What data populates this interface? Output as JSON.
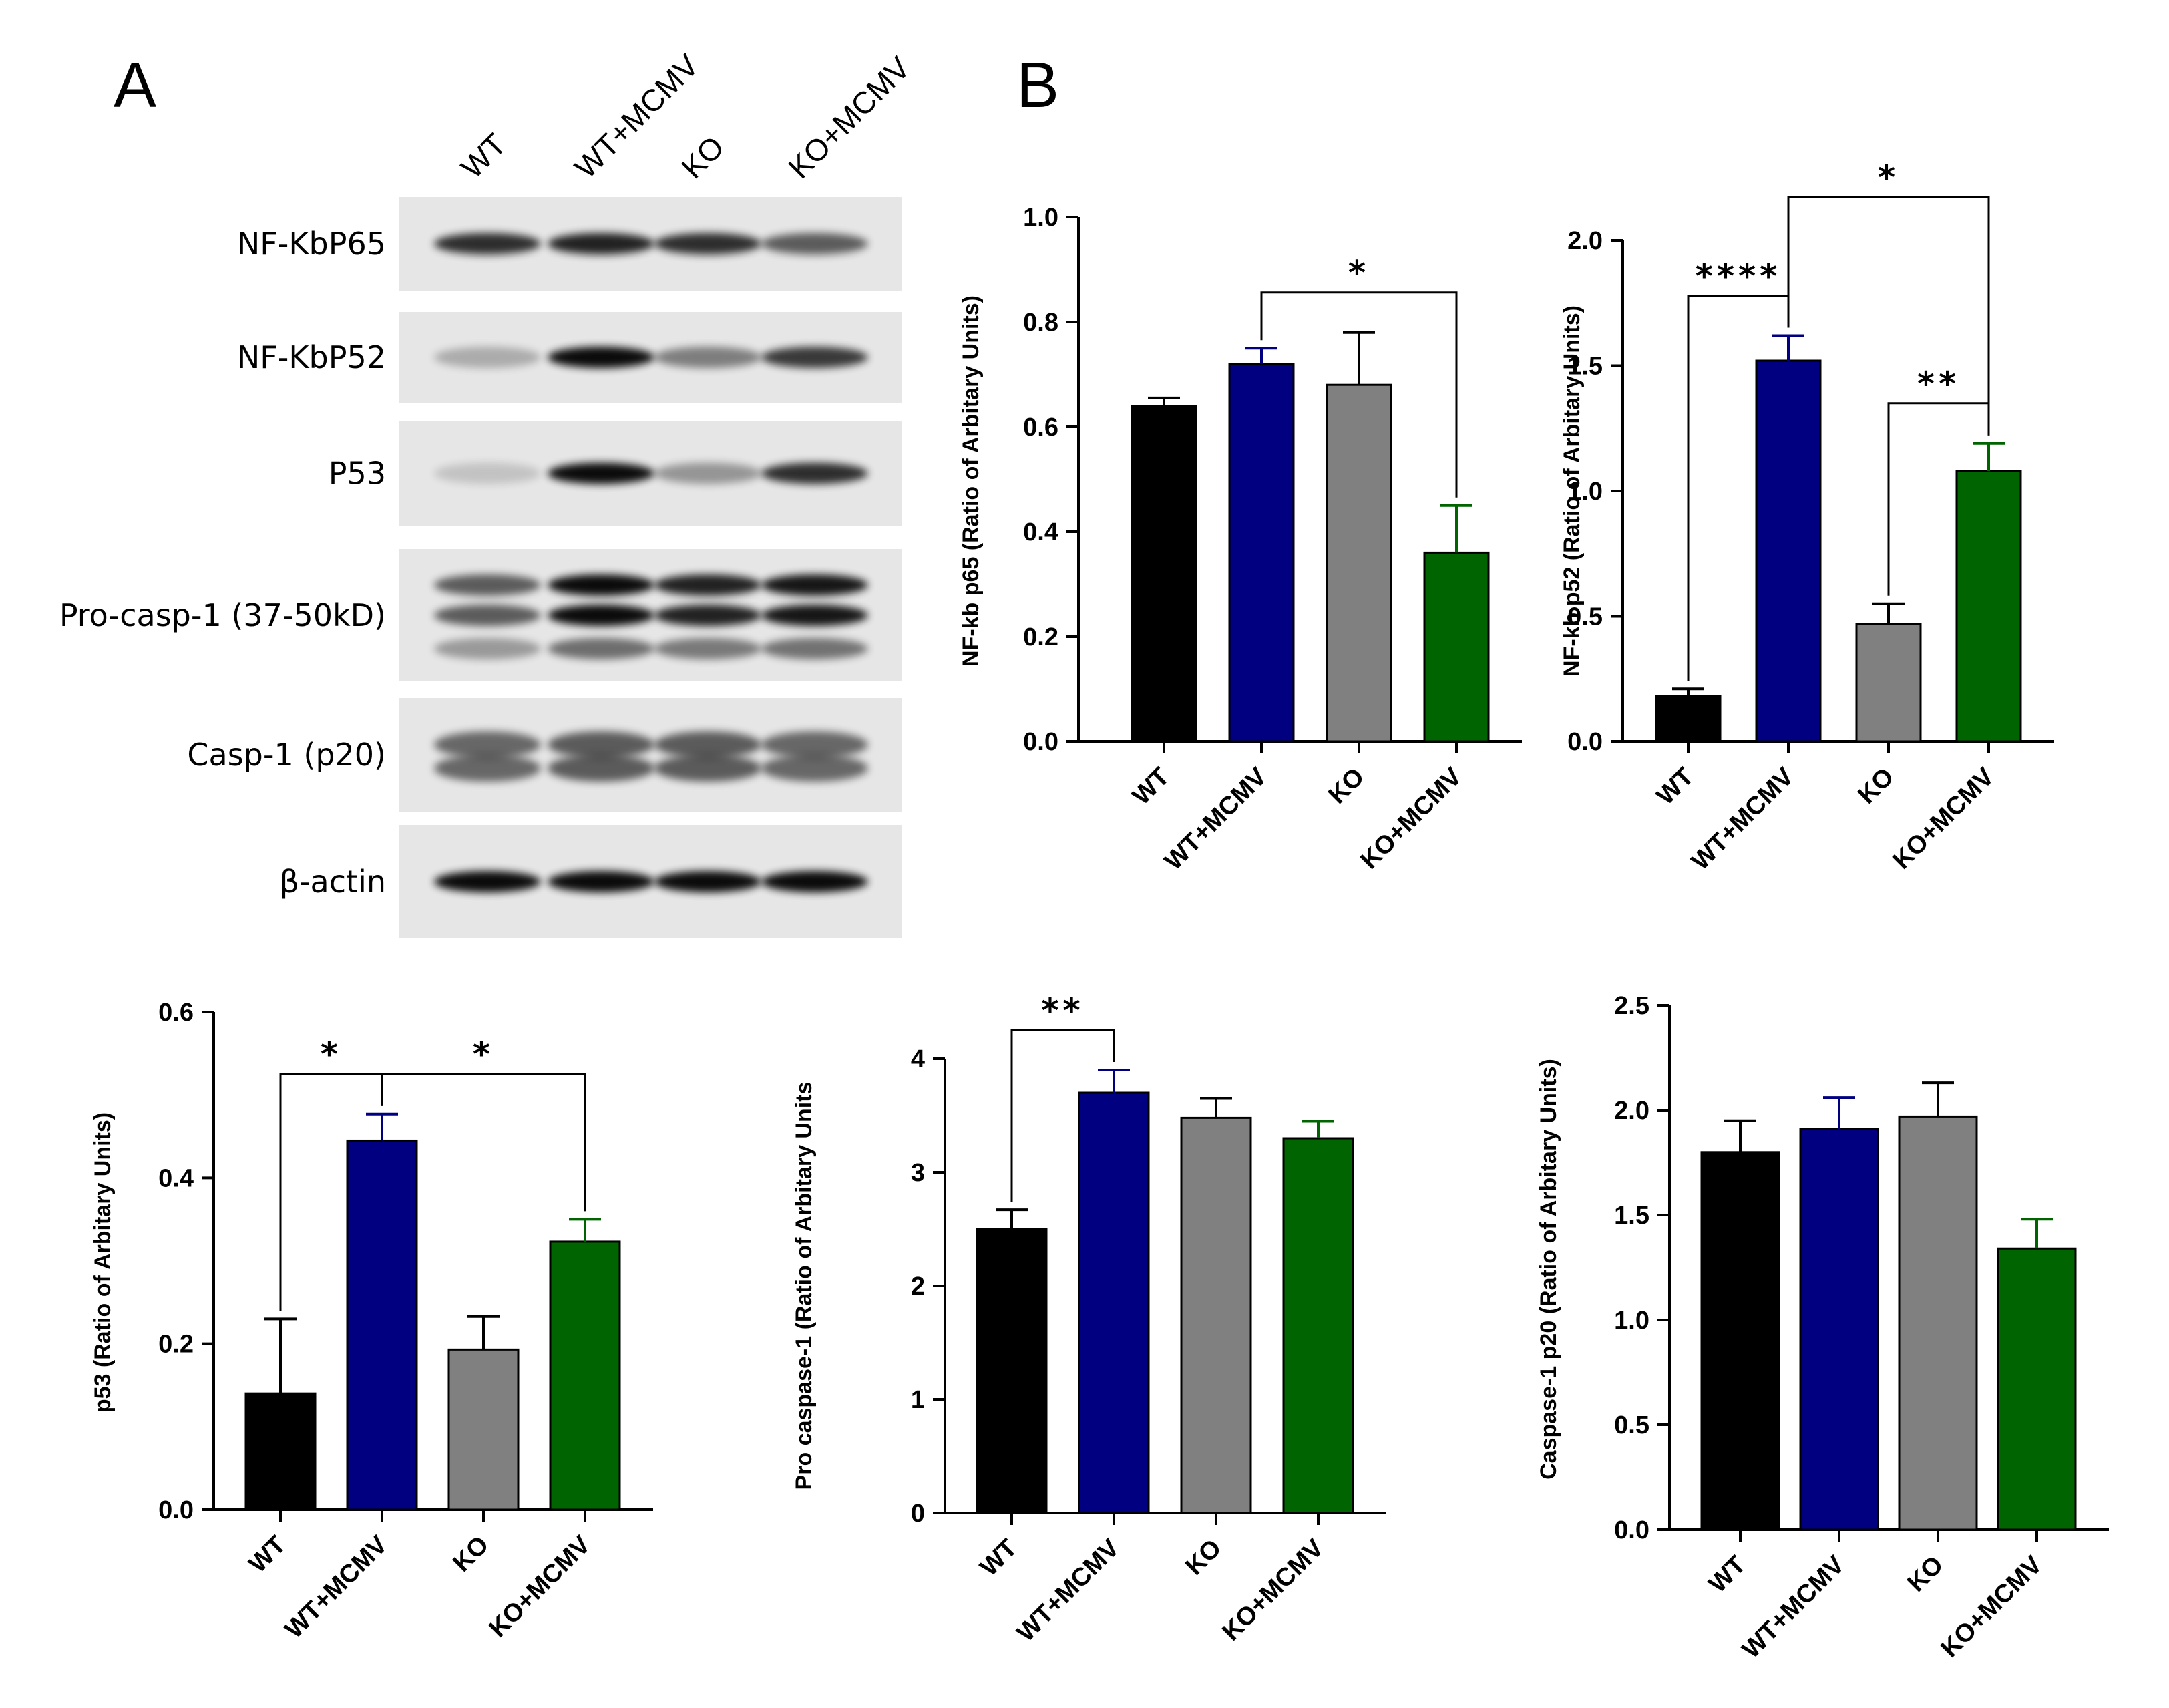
{
  "panel_labels": {
    "a": "A",
    "b": "B"
  },
  "blot": {
    "lanes": [
      "WT",
      "WT+MCMV",
      "KO",
      "KO+MCMV"
    ],
    "rows": [
      {
        "label": "NF-KbP65",
        "bands": [
          0.8,
          0.85,
          0.8,
          0.6
        ]
      },
      {
        "label": "NF-KbP52",
        "bands": [
          0.25,
          0.95,
          0.45,
          0.75
        ]
      },
      {
        "label": "P53",
        "bands": [
          0.15,
          0.95,
          0.35,
          0.8
        ]
      },
      {
        "label": "Pro-casp-1 (37-50kD)",
        "bands": [
          0.6,
          0.95,
          0.85,
          0.9
        ]
      },
      {
        "label": "Casp-1 (p20)",
        "bands": [
          0.55,
          0.6,
          0.6,
          0.55
        ]
      },
      {
        "label": "β-actin",
        "bands": [
          0.95,
          0.95,
          0.95,
          0.95
        ]
      }
    ]
  },
  "colors": {
    "WT": "#000000",
    "WT+MCMV": "#000080",
    "KO": "#808080",
    "KO+MCMV": "#006400"
  },
  "chart_data": [
    {
      "type": "bar",
      "ylabel": "NF-kb p65 (Ratio of Arbitary Units)",
      "categories": [
        "WT",
        "WT+MCMV",
        "KO",
        "KO+MCMV"
      ],
      "values": [
        0.64,
        0.72,
        0.68,
        0.36
      ],
      "errors": [
        0.015,
        0.03,
        0.1,
        0.09
      ],
      "ylim": [
        0,
        1.0
      ],
      "yticks": [
        "0.0",
        "0.2",
        "0.4",
        "0.6",
        "0.8",
        "1.0"
      ],
      "significance": [
        {
          "from": 1,
          "to": 3,
          "label": "*"
        }
      ]
    },
    {
      "type": "bar",
      "ylabel": "NF-kb p52 (Ratio of Arbitary Units)",
      "categories": [
        "WT",
        "WT+MCMV",
        "KO",
        "KO+MCMV"
      ],
      "values": [
        0.18,
        1.52,
        0.47,
        1.08
      ],
      "errors": [
        0.03,
        0.1,
        0.08,
        0.11
      ],
      "ylim": [
        0,
        2.0
      ],
      "yticks": [
        "0.0",
        "0.5",
        "1.0",
        "1.5",
        "2.0"
      ],
      "significance": [
        {
          "from": 0,
          "to": 1,
          "label": "****"
        },
        {
          "from": 2,
          "to": 3,
          "label": "**"
        },
        {
          "from": 1,
          "to": 3,
          "label": "*"
        }
      ]
    },
    {
      "type": "bar",
      "ylabel": "p53 (Ratio of Arbitary Units)",
      "categories": [
        "WT",
        "WT+MCMV",
        "KO",
        "KO+MCMV"
      ],
      "values": [
        0.14,
        0.445,
        0.193,
        0.323
      ],
      "errors": [
        0.09,
        0.032,
        0.04,
        0.027
      ],
      "ylim": [
        0,
        0.6
      ],
      "yticks": [
        "0.0",
        "0.2",
        "0.4",
        "0.6"
      ],
      "significance": [
        {
          "from": 0,
          "to": 1,
          "label": "*"
        },
        {
          "from": 1,
          "to": 3,
          "label": "*"
        }
      ]
    },
    {
      "type": "bar",
      "ylabel": "Pro caspase-1 (Ratio of Arbitary Units",
      "categories": [
        "WT",
        "WT+MCMV",
        "KO",
        "KO+MCMV"
      ],
      "values": [
        2.5,
        3.7,
        3.48,
        3.3
      ],
      "errors": [
        0.17,
        0.2,
        0.17,
        0.15
      ],
      "ylim": [
        0,
        4
      ],
      "yticks": [
        "0",
        "1",
        "2",
        "3",
        "4"
      ],
      "significance": [
        {
          "from": 0,
          "to": 1,
          "label": "**"
        }
      ]
    },
    {
      "type": "bar",
      "ylabel": "Caspase-1 p20 (Ratio of Arbitary Units)",
      "categories": [
        "WT",
        "WT+MCMV",
        "KO",
        "KO+MCMV"
      ],
      "values": [
        1.8,
        1.91,
        1.97,
        1.34
      ],
      "errors": [
        0.15,
        0.15,
        0.16,
        0.14
      ],
      "ylim": [
        0,
        2.5
      ],
      "yticks": [
        "0.0",
        "0.5",
        "1.0",
        "1.5",
        "2.0",
        "2.5"
      ],
      "significance": []
    }
  ]
}
